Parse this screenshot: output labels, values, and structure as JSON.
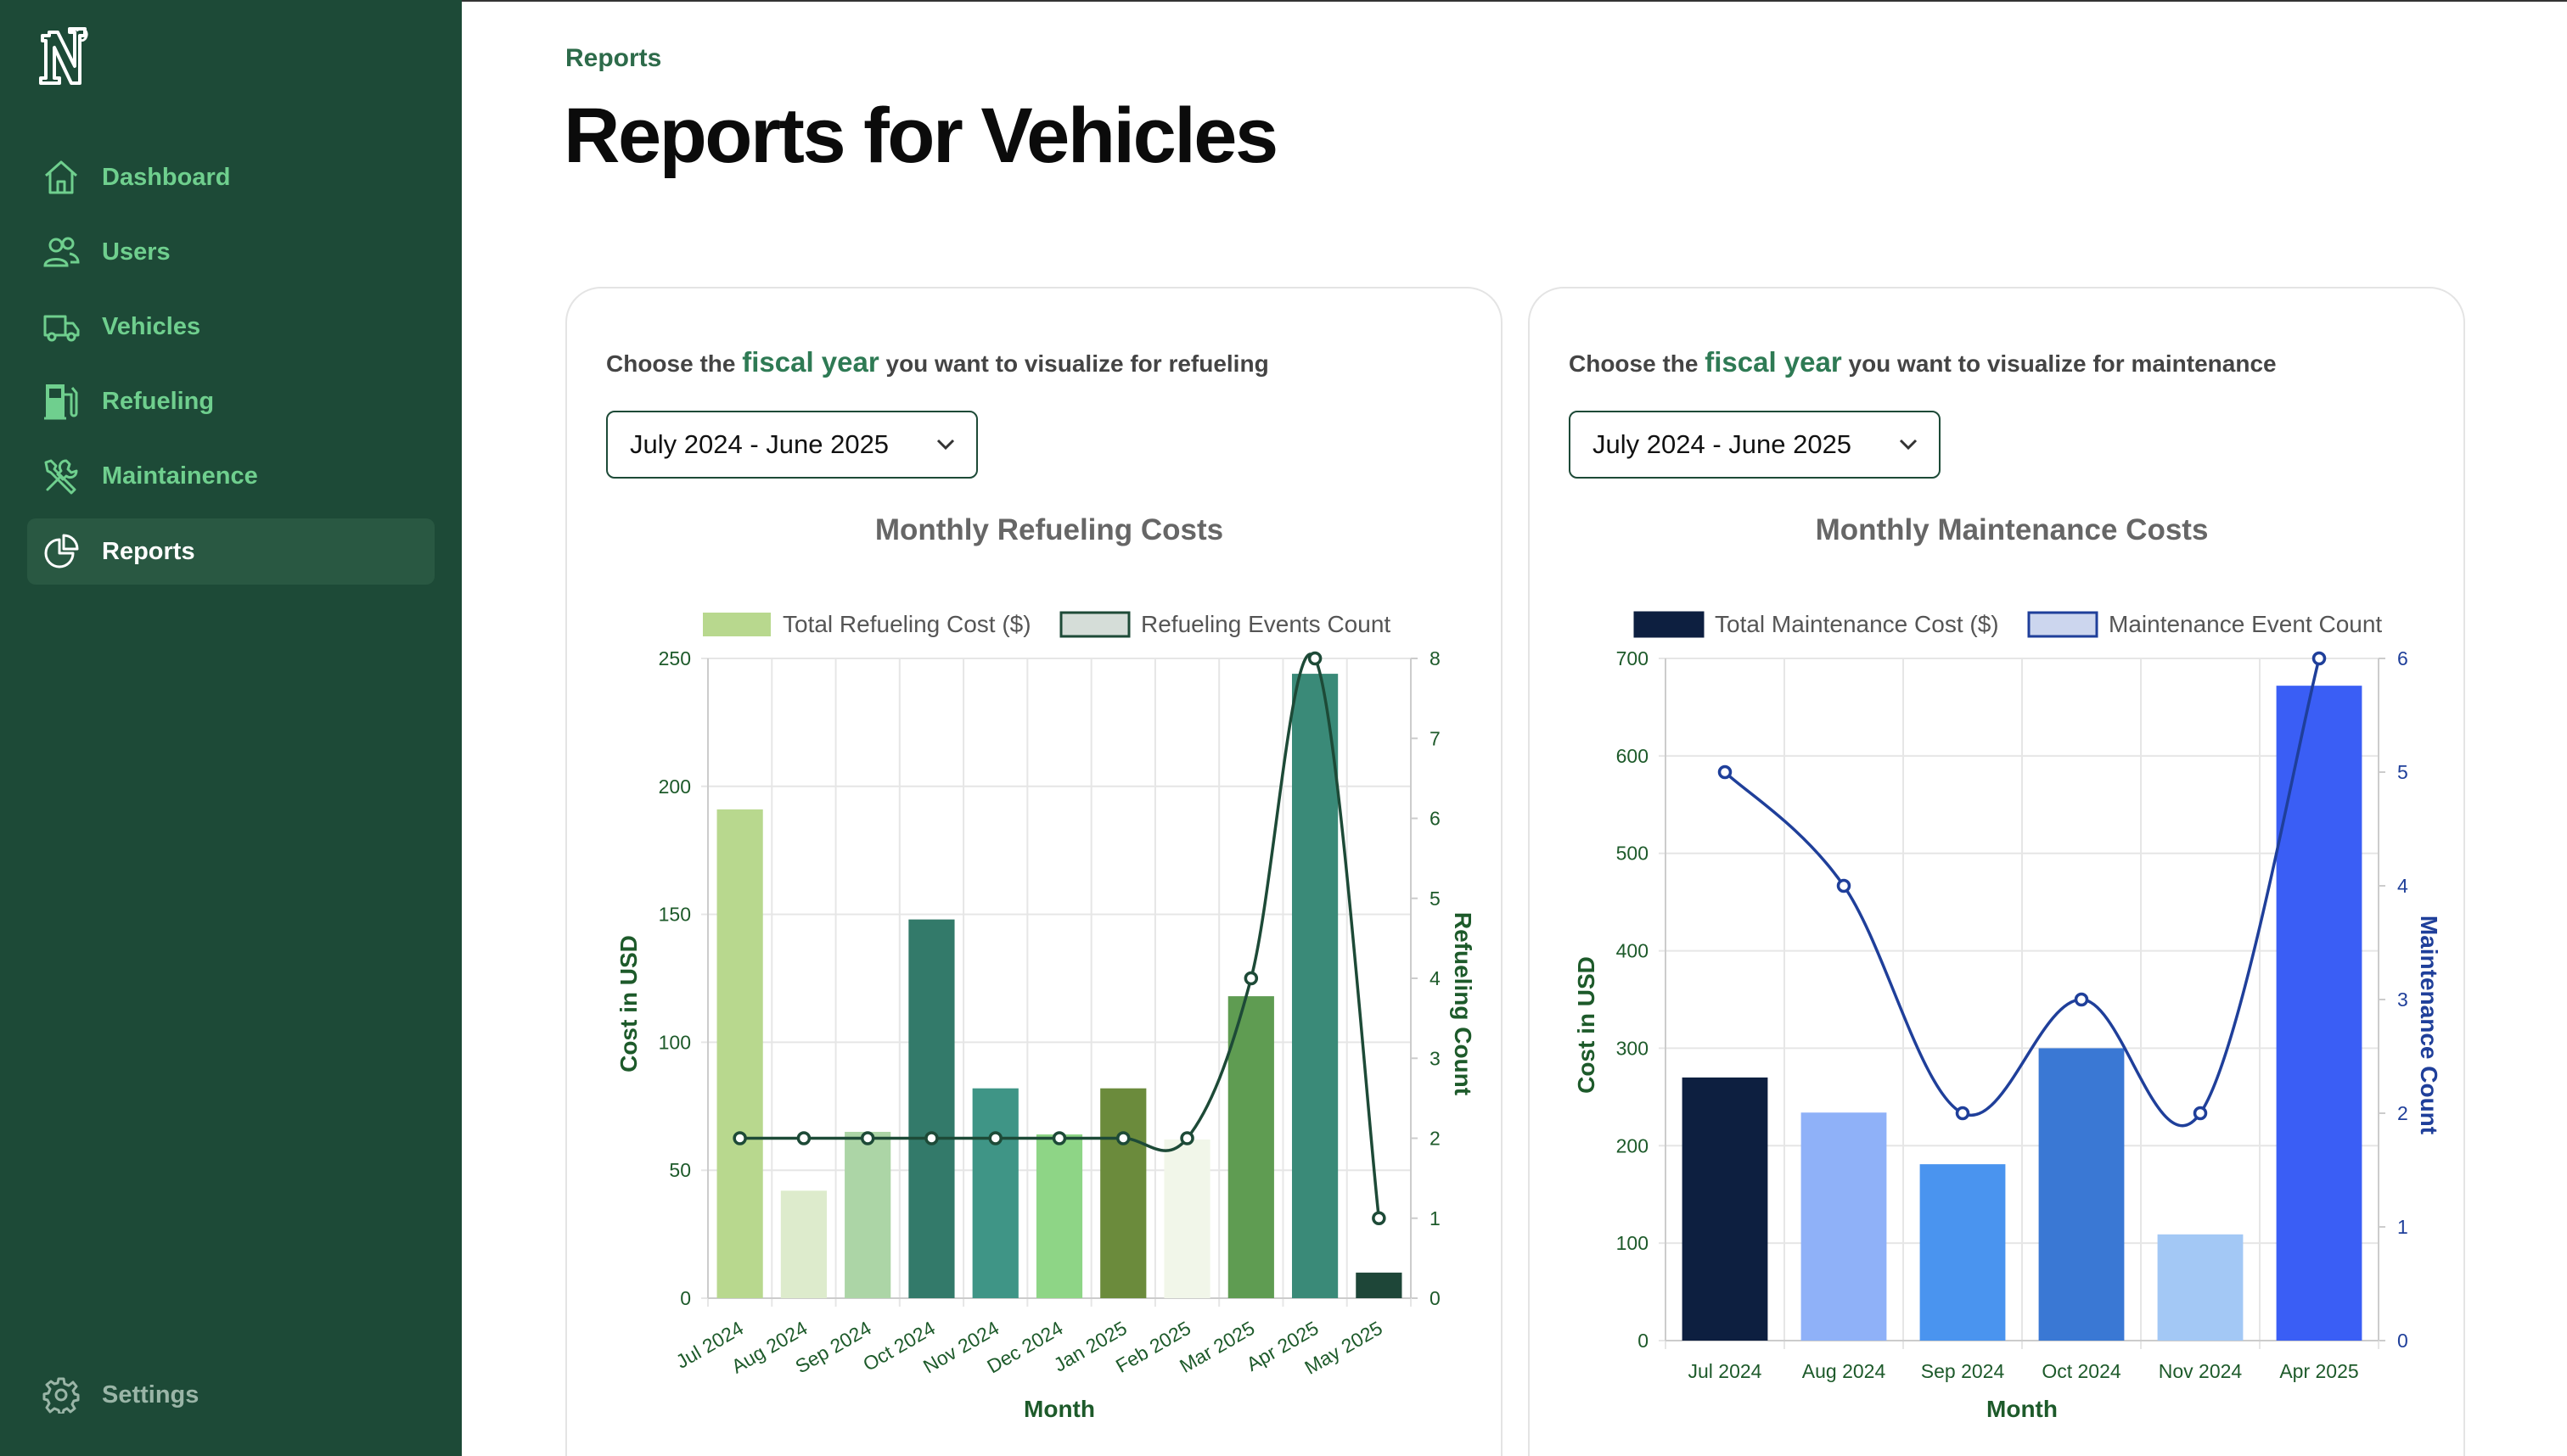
{
  "nav": {
    "items": [
      {
        "label": "Dashboard",
        "icon": "home-icon"
      },
      {
        "label": "Users",
        "icon": "users-icon"
      },
      {
        "label": "Vehicles",
        "icon": "truck-icon"
      },
      {
        "label": "Refueling",
        "icon": "fuel-pump-icon"
      },
      {
        "label": "Maintainence",
        "icon": "tools-icon"
      },
      {
        "label": "Reports",
        "icon": "pie-chart-icon"
      }
    ],
    "active": "Reports",
    "settings_label": "Settings"
  },
  "breadcrumb": "Reports",
  "page_title": "Reports for Vehicles",
  "refueling": {
    "choose_prefix": "Choose the",
    "choose_highlight": "fiscal year",
    "choose_suffix": "you want to visualize for refueling",
    "selected_year": "July 2024 - June 2025"
  },
  "maintenance": {
    "choose_prefix": "Choose the",
    "choose_highlight": "fiscal year",
    "choose_suffix": "you want to visualize for maintenance",
    "selected_year": "July 2024 - June 2025"
  },
  "colors": {
    "sidebar_bg": "#1d4a37",
    "nav_text": "#6fcf8e",
    "refuel_line": "#1d4a37",
    "maint_line": "#1f3f9a"
  },
  "chart_data": [
    {
      "type": "bar",
      "title": "Monthly Refueling Costs",
      "xlabel": "Month",
      "ylabel": "Cost in USD",
      "y2label": "Refueling Count",
      "ylim": [
        0,
        250
      ],
      "y2lim": [
        0,
        8
      ],
      "legend_position": "top",
      "grid": true,
      "categories": [
        "Jul 2024",
        "Aug 2024",
        "Sep 2024",
        "Oct 2024",
        "Nov 2024",
        "Dec 2024",
        "Jan 2025",
        "Feb 2025",
        "Mar 2025",
        "Apr 2025",
        "May 2025"
      ],
      "series": [
        {
          "name": "Total Refueling Cost ($)",
          "kind": "bar",
          "axis": "y",
          "values": [
            191,
            42,
            65,
            148,
            82,
            64,
            82,
            62,
            118,
            244,
            10
          ]
        },
        {
          "name": "Refueling Events Count",
          "kind": "line",
          "axis": "y2",
          "values": [
            2,
            2,
            2,
            2,
            2,
            2,
            2,
            2,
            4,
            8,
            1
          ]
        }
      ],
      "bar_colors": [
        "#b8d88e",
        "#ddebcc",
        "#acd5a6",
        "#337a6a",
        "#3f9586",
        "#8ed586",
        "#6b8b3c",
        "#f1f6e9",
        "#5f9c52",
        "#3a8a78",
        "#1e4638"
      ],
      "line_color": "#1d4a37",
      "legend_colors": [
        "#b8d88e",
        "#d5ddd8"
      ]
    },
    {
      "type": "bar",
      "title": "Monthly Maintenance Costs",
      "xlabel": "Month",
      "ylabel": "Cost in USD",
      "y2label": "Maintenance Count",
      "ylim": [
        0,
        700
      ],
      "y2lim": [
        0,
        6
      ],
      "legend_position": "top",
      "grid": true,
      "categories": [
        "Jul 2024",
        "Aug 2024",
        "Sep 2024",
        "Oct 2024",
        "Nov 2024",
        "Apr 2025"
      ],
      "series": [
        {
          "name": "Total Maintenance Cost ($)",
          "kind": "bar",
          "axis": "y",
          "values": [
            270,
            234,
            181,
            300,
            109,
            672
          ]
        },
        {
          "name": "Maintenance Event Count",
          "kind": "line",
          "axis": "y2",
          "values": [
            5,
            4,
            2,
            3,
            2,
            6
          ]
        }
      ],
      "bar_colors": [
        "#0d1f40",
        "#8fb1f8",
        "#4a94ef",
        "#3a78d4",
        "#a3c8f5",
        "#3a5ef5"
      ],
      "line_color": "#1f3f9a",
      "legend_colors": [
        "#0d1f40",
        "#ccd6ee"
      ]
    }
  ]
}
